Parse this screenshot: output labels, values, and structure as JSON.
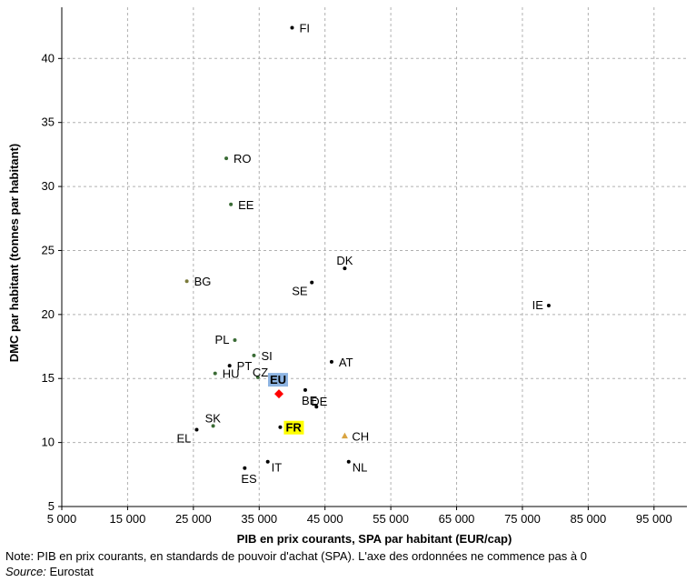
{
  "chart_data": {
    "type": "scatter",
    "title": "",
    "xlabel": "PIB en prix courants, SPA par habitant (EUR/cap)",
    "ylabel": "DMC par habitant (tonnes par habitant)",
    "xlim": [
      5000,
      100000
    ],
    "ylim": [
      5,
      44
    ],
    "x_ticks": [
      5000,
      15000,
      25000,
      35000,
      45000,
      55000,
      65000,
      75000,
      85000,
      95000
    ],
    "x_tick_labels": [
      "5 000",
      "15 000",
      "25 000",
      "35 000",
      "45 000",
      "55 000",
      "65 000",
      "75 000",
      "85 000",
      "95 000"
    ],
    "y_ticks": [
      5,
      10,
      15,
      20,
      25,
      30,
      35,
      40
    ],
    "y_tick_labels": [
      "5",
      "10",
      "15",
      "20",
      "25",
      "30",
      "35",
      "40"
    ],
    "grid": true,
    "colors": {
      "default": "#000000",
      "group_green": "#3a6b35",
      "group_olive": "#7a7a3a",
      "eu": "#ff0000",
      "ch": "#d9a441",
      "eu_highlight": "#8db4e2",
      "fr_highlight": "#ffff00",
      "grid": "#b0b0b0"
    },
    "points": [
      {
        "label": "FI",
        "x": 40000,
        "y": 42.4,
        "color": "default",
        "marker": "circle",
        "label_pos": "right"
      },
      {
        "label": "RO",
        "x": 30000,
        "y": 32.2,
        "color": "group_green",
        "marker": "circle",
        "label_pos": "right"
      },
      {
        "label": "EE",
        "x": 30700,
        "y": 28.6,
        "color": "group_green",
        "marker": "circle",
        "label_pos": "right"
      },
      {
        "label": "DK",
        "x": 48000,
        "y": 23.6,
        "color": "default",
        "marker": "circle",
        "label_pos": "above-left"
      },
      {
        "label": "SE",
        "x": 43000,
        "y": 22.5,
        "color": "default",
        "marker": "circle",
        "label_pos": "below-left"
      },
      {
        "label": "BG",
        "x": 24000,
        "y": 22.6,
        "color": "group_olive",
        "marker": "circle",
        "label_pos": "right"
      },
      {
        "label": "IE",
        "x": 79000,
        "y": 20.7,
        "color": "default",
        "marker": "circle",
        "label_pos": "left"
      },
      {
        "label": "PL",
        "x": 31300,
        "y": 18.0,
        "color": "group_green",
        "marker": "circle",
        "label_pos": "left"
      },
      {
        "label": "SI",
        "x": 34200,
        "y": 16.8,
        "color": "group_green",
        "marker": "circle",
        "label_pos": "right"
      },
      {
        "label": "AT",
        "x": 46000,
        "y": 16.3,
        "color": "default",
        "marker": "circle",
        "label_pos": "right"
      },
      {
        "label": "PT",
        "x": 30500,
        "y": 16.0,
        "color": "default",
        "marker": "circle",
        "label_pos": "right"
      },
      {
        "label": "HU",
        "x": 28300,
        "y": 15.4,
        "color": "group_green",
        "marker": "circle",
        "label_pos": "right"
      },
      {
        "label": "CZ",
        "x": 34800,
        "y": 15.1,
        "color": "group_green",
        "marker": "circle",
        "label_pos": "right-above"
      },
      {
        "label": "BE",
        "x": 42000,
        "y": 14.1,
        "color": "default",
        "marker": "circle",
        "label_pos": "below"
      },
      {
        "label": "DE",
        "x": 43700,
        "y": 12.8,
        "color": "default",
        "marker": "circle",
        "label_pos": "right-above"
      },
      {
        "label": "EU",
        "x": 38000,
        "y": 13.8,
        "color": "eu",
        "marker": "diamond",
        "label_pos": "highlight-above",
        "highlight": "eu_highlight"
      },
      {
        "label": "SK",
        "x": 28000,
        "y": 11.3,
        "color": "group_green",
        "marker": "circle",
        "label_pos": "above-left"
      },
      {
        "label": "FR",
        "x": 38200,
        "y": 11.2,
        "color": "default",
        "marker": "circle",
        "label_pos": "highlight-right",
        "highlight": "fr_highlight"
      },
      {
        "label": "EL",
        "x": 25500,
        "y": 11.0,
        "color": "default",
        "marker": "circle",
        "label_pos": "below-left"
      },
      {
        "label": "CH",
        "x": 48000,
        "y": 10.5,
        "color": "ch",
        "marker": "triangle",
        "label_pos": "right"
      },
      {
        "label": "IT",
        "x": 36300,
        "y": 8.5,
        "color": "default",
        "marker": "circle",
        "label_pos": "right-below"
      },
      {
        "label": "NL",
        "x": 48600,
        "y": 8.5,
        "color": "default",
        "marker": "circle",
        "label_pos": "right-below"
      },
      {
        "label": "ES",
        "x": 32800,
        "y": 8.0,
        "color": "default",
        "marker": "circle",
        "label_pos": "below"
      }
    ]
  },
  "footer": {
    "note": "Note: PIB en prix courants, en standards de pouvoir d'achat (SPA). L'axe des ordonnées ne commence pas à 0",
    "source_label": "Source:",
    "source_value": "Eurostat"
  }
}
